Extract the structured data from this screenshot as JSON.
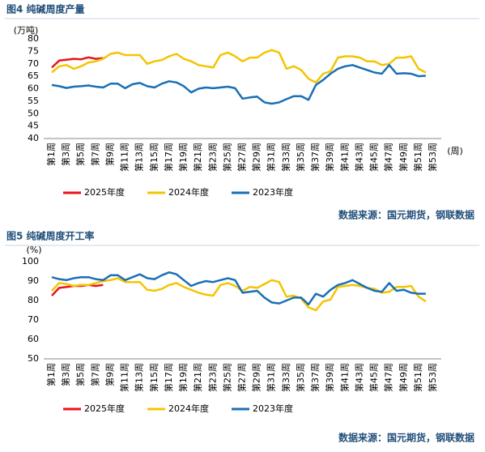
{
  "chart_data": [
    {
      "type": "line",
      "title": "图4 纯碱周度产量",
      "y_label": "(万吨)",
      "x_label": "(周)",
      "source": "数据来源：国元期货，钢联数据",
      "categories": [
        "第1周",
        null,
        "第3周",
        null,
        "第5周",
        null,
        "第7周",
        null,
        "第9周",
        null,
        "第11周",
        null,
        "第13周",
        null,
        "第15周",
        null,
        "第17周",
        null,
        "第19周",
        null,
        "第21周",
        null,
        "第23周",
        null,
        "第25周",
        null,
        "第27周",
        null,
        "第29周",
        null,
        "第31周",
        null,
        "第33周",
        null,
        "第35周",
        null,
        "第37周",
        null,
        "第39周",
        null,
        "第41周",
        null,
        "第43周",
        null,
        "第45周",
        null,
        "第47周",
        null,
        "第49周",
        null,
        "第51周",
        null,
        "第53周"
      ],
      "series": [
        {
          "name": "2025年度",
          "color": "#e8141b",
          "values": [
            68.5,
            71.3,
            71.6,
            72,
            71.8,
            72.6,
            72,
            72.3,
            null,
            null,
            null,
            null,
            null,
            null,
            null,
            null,
            null,
            null,
            null,
            null,
            null,
            null,
            null,
            null,
            null,
            null,
            null,
            null,
            null,
            null,
            null,
            null,
            null,
            null,
            null,
            null,
            null,
            null,
            null,
            null,
            null,
            null,
            null,
            null,
            null,
            null,
            null,
            null,
            null,
            null,
            null,
            null,
            null
          ]
        },
        {
          "name": "2024年度",
          "color": "#f5c400",
          "values": [
            66.5,
            69,
            69.5,
            68,
            69,
            70.5,
            71,
            72,
            74,
            74.5,
            73.5,
            73.5,
            73.5,
            70,
            71,
            71.5,
            73,
            74,
            72,
            71,
            69.5,
            69,
            68.5,
            73.5,
            74.5,
            73,
            71,
            72.5,
            72.5,
            74.5,
            75.5,
            74.5,
            68,
            69,
            67.5,
            64,
            62.5,
            66,
            67,
            72.5,
            73,
            73,
            72.5,
            71,
            71,
            69.5,
            70,
            72.5,
            72.5,
            73,
            68,
            66.5,
            null
          ]
        },
        {
          "name": "2023年度",
          "color": "#1a6fb5",
          "values": [
            61.5,
            61,
            60.3,
            60.8,
            61,
            61.3,
            60.8,
            60.5,
            62,
            62,
            60.2,
            61.8,
            62.3,
            61,
            60.5,
            62,
            63,
            62.5,
            61,
            58.5,
            60,
            60.5,
            60.2,
            60.5,
            60.8,
            60.2,
            56,
            56.5,
            56.8,
            54.5,
            54,
            54.5,
            55.8,
            57,
            57,
            55.5,
            61.5,
            63.5,
            66,
            68,
            69,
            69.5,
            68.5,
            67.5,
            66.5,
            66,
            69.5,
            66,
            66.2,
            66,
            65,
            65.2,
            null
          ]
        }
      ],
      "ylim": [
        40,
        80
      ],
      "yticks": [
        40,
        45,
        50,
        55,
        60,
        65,
        70,
        75,
        80
      ]
    },
    {
      "type": "line",
      "title": "图5 纯碱周度开工率",
      "y_label": "(%)",
      "source": "数据来源：国元期货，钢联数据",
      "categories": [
        "第1周",
        null,
        "第3周",
        null,
        "第5周",
        null,
        "第7周",
        null,
        "第9周",
        null,
        "第11周",
        null,
        "第13周",
        null,
        "第15周",
        null,
        "第17周",
        null,
        "第19周",
        null,
        "第21周",
        null,
        "第23周",
        null,
        "第25周",
        null,
        "第27周",
        null,
        "第29周",
        null,
        "第31周",
        null,
        "第33周",
        null,
        "第35周",
        null,
        "第37周",
        null,
        "第39周",
        null,
        "第41周",
        null,
        "第43周",
        null,
        "第45周",
        null,
        "第47周",
        null,
        "第49周",
        null,
        "第51周",
        null,
        "第53周"
      ],
      "series": [
        {
          "name": "2025年度",
          "color": "#e8141b",
          "values": [
            82.5,
            86.5,
            87,
            87.5,
            87.5,
            88,
            87.5,
            88,
            null,
            null,
            null,
            null,
            null,
            null,
            null,
            null,
            null,
            null,
            null,
            null,
            null,
            null,
            null,
            null,
            null,
            null,
            null,
            null,
            null,
            null,
            null,
            null,
            null,
            null,
            null,
            null,
            null,
            null,
            null,
            null,
            null,
            null,
            null,
            null,
            null,
            null,
            null,
            null,
            null,
            null,
            null,
            null,
            null
          ]
        },
        {
          "name": "2024年度",
          "color": "#f5c400",
          "values": [
            85,
            89,
            88.5,
            87.5,
            88,
            88,
            89,
            90,
            90.5,
            91.5,
            89.5,
            89.5,
            89.5,
            85.5,
            85,
            86,
            88,
            89,
            87,
            85.5,
            84,
            83,
            82.5,
            88,
            89,
            87.5,
            85,
            87,
            86.5,
            88.5,
            90.5,
            89.5,
            82,
            82.5,
            81,
            76.5,
            75,
            79.5,
            80.5,
            87,
            87.5,
            88,
            87.5,
            86.5,
            86,
            84,
            84.5,
            87,
            87,
            87.5,
            82,
            79.5,
            null
          ]
        },
        {
          "name": "2023年度",
          "color": "#1a6fb5",
          "values": [
            92,
            91,
            90.5,
            91.5,
            92,
            92,
            91,
            90.5,
            93,
            93,
            90.5,
            92,
            93.5,
            91.5,
            91,
            93,
            94.5,
            93.5,
            90.5,
            87.5,
            89,
            90,
            89.5,
            90.5,
            91.5,
            90.5,
            84,
            84.5,
            85,
            81.5,
            79,
            78.5,
            80,
            81.5,
            81.5,
            78,
            83.5,
            82,
            85.5,
            88,
            89,
            90.5,
            88.5,
            86.5,
            85,
            84.5,
            89,
            85,
            85.5,
            84,
            83.5,
            83.5,
            null
          ]
        }
      ],
      "ylim": [
        50,
        100
      ],
      "yticks": [
        50,
        60,
        70,
        80,
        90,
        100
      ]
    }
  ]
}
